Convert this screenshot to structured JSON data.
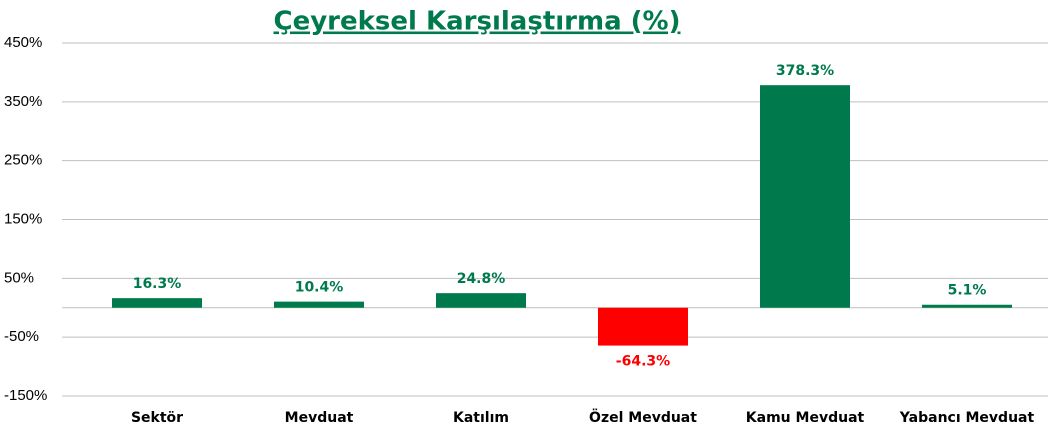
{
  "chart_data": {
    "type": "bar",
    "title": "Çeyreksel Karşılaştırma (%)",
    "categories": [
      "Sektör",
      "Mevduat",
      "Katılım",
      "Özel Mevduat",
      "Kamu Mevduat",
      "Yabancı Mevduat"
    ],
    "values": [
      16.3,
      10.4,
      24.8,
      -64.3,
      378.3,
      5.1
    ],
    "value_labels": [
      "16.3%",
      "10.4%",
      "24.8%",
      "-64.3%",
      "378.3%",
      "5.1%"
    ],
    "colors": [
      "#007a4d",
      "#007a4d",
      "#007a4d",
      "#ff0000",
      "#007a4d",
      "#007a4d"
    ],
    "ylim": [
      -150,
      450
    ],
    "yticks": [
      {
        "value": -150,
        "label": "-150%"
      },
      {
        "value": -50,
        "label": "-50%"
      },
      {
        "value": 50,
        "label": "50%"
      },
      {
        "value": 150,
        "label": "150%"
      },
      {
        "value": 250,
        "label": "250%"
      },
      {
        "value": 350,
        "label": "350%"
      },
      {
        "value": 450,
        "label": "450%"
      }
    ],
    "grid": true
  }
}
